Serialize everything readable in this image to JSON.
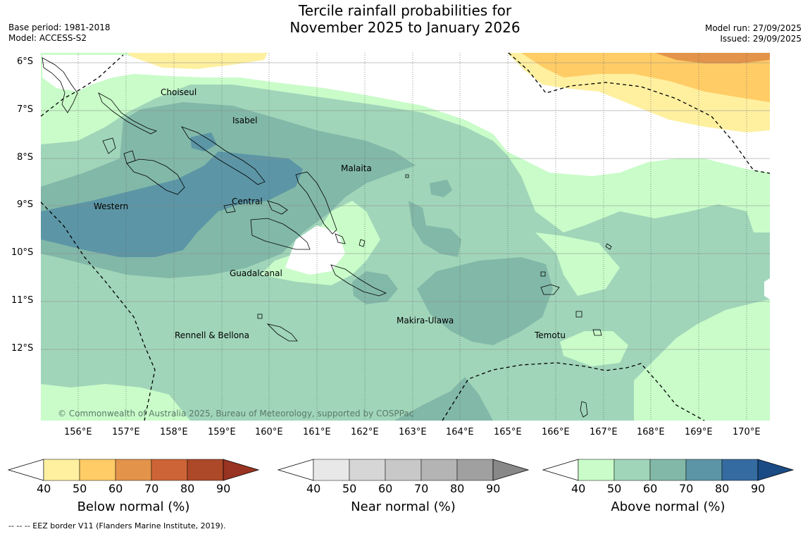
{
  "header": {
    "title_line1": "Tercile rainfall probabilities for",
    "title_line2": "November 2025 to January 2026",
    "base_period": "Base period: 1981-2018",
    "model": "Model: ACCESS-S2",
    "model_run": "Model run: 27/09/2025",
    "issued": "Issued: 29/09/2025"
  },
  "map": {
    "lat_labels": [
      "6°S",
      "7°S",
      "8°S",
      "9°S",
      "10°S",
      "11°S",
      "12°S"
    ],
    "lon_labels": [
      "156°E",
      "157°E",
      "158°E",
      "159°E",
      "160°E",
      "161°E",
      "162°E",
      "163°E",
      "164°E",
      "165°E",
      "166°E",
      "167°E",
      "168°E",
      "169°E",
      "170°E"
    ],
    "regions": [
      "Choiseul",
      "Isabel",
      "Malaita",
      "Western",
      "Central",
      "Guadalcanal",
      "Makira-Ulawa",
      "Rennell & Bellona",
      "Temotu"
    ],
    "copyright": "© Commonwealth of Australia 2025, Bureau of Meteorology, supported by COSPPac"
  },
  "colorbars": [
    {
      "label": "Below normal (%)",
      "ticks": [
        "40",
        "50",
        "60",
        "70",
        "80",
        "90"
      ],
      "colors": [
        "#fff0a0",
        "#ffcc66",
        "#e3944a",
        "#cd6437",
        "#ad4828"
      ],
      "end_color": "#993322"
    },
    {
      "label": "Near normal (%)",
      "ticks": [
        "40",
        "50",
        "60",
        "70",
        "80",
        "90"
      ],
      "colors": [
        "#e8e8e8",
        "#d6d6d6",
        "#c8c8c8",
        "#b4b4b4",
        "#a0a0a0"
      ],
      "end_color": "#888888"
    },
    {
      "label": "Above normal (%)",
      "ticks": [
        "40",
        "50",
        "60",
        "70",
        "80",
        "90"
      ],
      "colors": [
        "#c9fcc9",
        "#a0d5b9",
        "#82b8a8",
        "#5c96a6",
        "#346ba0"
      ],
      "end_color": "#1b4b85"
    }
  ],
  "footer": {
    "legend_line": "-- -- -- EEZ border V11 (Flanders Marine Institute, 2019)."
  }
}
